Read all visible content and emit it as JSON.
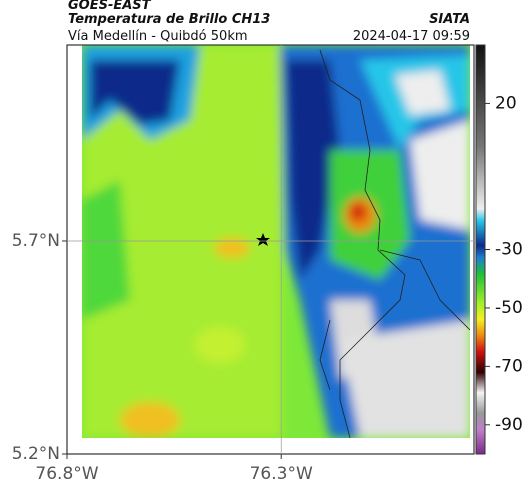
{
  "header": {
    "source": "GOES-EAST",
    "product": "Temperatura de Brillo CH13",
    "org": "SIATA",
    "region": "Vía Medellín - Quibdó 50km",
    "datetime": "2024-04-17 09:59"
  },
  "map": {
    "xlim": [
      -76.8,
      -75.85
    ],
    "ylim": [
      5.2,
      6.16
    ],
    "xticks": [
      {
        "value": -76.8,
        "label": "76.8°W"
      },
      {
        "value": -76.3,
        "label": "76.3°W"
      }
    ],
    "yticks": [
      {
        "value": 5.2,
        "label": "5.2°N"
      },
      {
        "value": 5.7,
        "label": "5.7°N"
      }
    ],
    "grid": true
  },
  "colorbar": {
    "lim": [
      -100,
      40
    ],
    "ticks": [
      20,
      -30,
      -50,
      -70,
      -90
    ]
  }
}
